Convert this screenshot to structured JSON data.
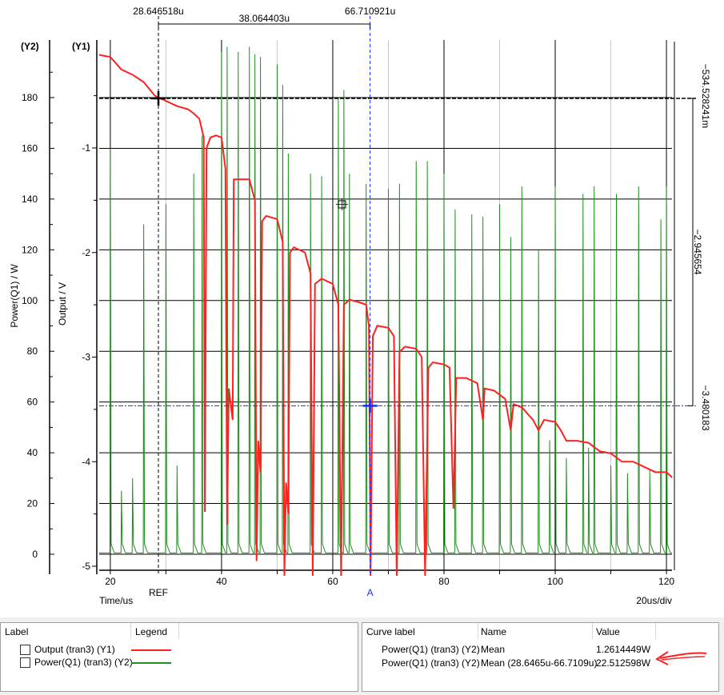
{
  "chart_data": {
    "type": "line",
    "xlabel": "Time/us",
    "x_scale_label": "20us/div",
    "xlim": [
      18,
      121
    ],
    "x_ticks": [
      20,
      40,
      60,
      80,
      100,
      120
    ],
    "y1": {
      "label": "Output / V",
      "tag": "(Y1)",
      "ylim": [
        -5.05,
        0.2
      ],
      "ticks": [
        -1,
        -2,
        -3,
        -4,
        -5
      ]
    },
    "y2": {
      "label": "Power(Q1) / W",
      "tag": "(Y2)",
      "ylim": [
        -5,
        200
      ],
      "ticks": [
        0,
        20,
        40,
        60,
        80,
        100,
        120,
        140,
        160,
        180
      ]
    },
    "grid": true,
    "colors": {
      "output": "#ff2020",
      "power": "#1f8f1f",
      "cursor_a": "#1030ff"
    },
    "cursors": {
      "ref": {
        "label": "REF",
        "x": 28.646518,
        "y2": 179.7
      },
      "a": {
        "label": "A",
        "x": 66.710921,
        "y2": 58.5
      },
      "ref_x_label": "28.646518u",
      "a_x_label": "66.710921u",
      "delta_label": "38.064403u",
      "right_top_label": "−534.528241m",
      "right_mid_label": "−2.945654",
      "right_bottom_label": "−3.480183"
    },
    "series": [
      {
        "name": "Output (tran3) (Y1)",
        "axis": "y1",
        "points": [
          [
            18,
            -0.11
          ],
          [
            20,
            -0.13
          ],
          [
            22,
            -0.25
          ],
          [
            24,
            -0.3
          ],
          [
            26,
            -0.37
          ],
          [
            28,
            -0.5
          ],
          [
            30,
            -0.55
          ],
          [
            32,
            -0.6
          ],
          [
            34,
            -0.63
          ],
          [
            35,
            -0.67
          ],
          [
            36,
            -0.72
          ],
          [
            36.8,
            -0.9
          ],
          [
            37,
            -4.48
          ],
          [
            37.3,
            -1.0
          ],
          [
            38,
            -0.9
          ],
          [
            39,
            -0.88
          ],
          [
            40,
            -0.9
          ],
          [
            40.7,
            -1.2
          ],
          [
            41,
            -4.6
          ],
          [
            41.3,
            -3.3
          ],
          [
            42,
            -3.6
          ],
          [
            42.2,
            -1.3
          ],
          [
            43,
            -1.3
          ],
          [
            45,
            -1.3
          ],
          [
            46,
            -1.5
          ],
          [
            46.3,
            -4.95
          ],
          [
            46.6,
            -3.8
          ],
          [
            47,
            -4.1
          ],
          [
            47.3,
            -1.7
          ],
          [
            48,
            -1.65
          ],
          [
            50,
            -1.68
          ],
          [
            51,
            -1.9
          ],
          [
            51.3,
            -5.4
          ],
          [
            51.6,
            -4.2
          ],
          [
            52,
            -4.5
          ],
          [
            52.3,
            -2.0
          ],
          [
            53,
            -1.95
          ],
          [
            55,
            -2.0
          ],
          [
            56,
            -2.2
          ],
          [
            56.4,
            -5.5
          ],
          [
            56.8,
            -2.3
          ],
          [
            58,
            -2.25
          ],
          [
            60,
            -2.3
          ],
          [
            61,
            -2.5
          ],
          [
            61.5,
            -5.5
          ],
          [
            62,
            -2.5
          ],
          [
            63,
            -2.45
          ],
          [
            65,
            -2.48
          ],
          [
            66,
            -2.5
          ],
          [
            66.5,
            -2.7
          ],
          [
            66.8,
            -5.5
          ],
          [
            67.2,
            -2.8
          ],
          [
            68,
            -2.7
          ],
          [
            70,
            -2.72
          ],
          [
            71,
            -2.8
          ],
          [
            71.5,
            -5.5
          ],
          [
            72,
            -2.95
          ],
          [
            73,
            -2.9
          ],
          [
            75,
            -2.92
          ],
          [
            76,
            -3.0
          ],
          [
            76.6,
            -5.5
          ],
          [
            77.2,
            -3.1
          ],
          [
            78,
            -3.05
          ],
          [
            80,
            -3.07
          ],
          [
            81,
            -3.1
          ],
          [
            81.7,
            -4.45
          ],
          [
            82.2,
            -3.2
          ],
          [
            84,
            -3.2
          ],
          [
            86,
            -3.25
          ],
          [
            87,
            -3.6
          ],
          [
            87.3,
            -3.3
          ],
          [
            89,
            -3.32
          ],
          [
            91,
            -3.4
          ],
          [
            92,
            -3.7
          ],
          [
            92.5,
            -3.45
          ],
          [
            94,
            -3.48
          ],
          [
            96,
            -3.6
          ],
          [
            97,
            -3.7
          ],
          [
            98,
            -3.6
          ],
          [
            100,
            -3.62
          ],
          [
            101,
            -3.7
          ],
          [
            102,
            -3.8
          ],
          [
            104,
            -3.8
          ],
          [
            106,
            -3.82
          ],
          [
            108,
            -3.9
          ],
          [
            110,
            -3.92
          ],
          [
            112,
            -4.0
          ],
          [
            114,
            -4.0
          ],
          [
            116,
            -4.05
          ],
          [
            118,
            -4.1
          ],
          [
            120,
            -4.1
          ],
          [
            121,
            -4.15
          ]
        ]
      },
      {
        "name": "Power(Q1) (tran3) (Y2)",
        "axis": "y2",
        "baseline": 0.5,
        "spikes": [
          [
            20,
            160
          ],
          [
            22,
            25
          ],
          [
            24,
            30
          ],
          [
            26,
            130
          ],
          [
            30,
            138
          ],
          [
            32,
            35
          ],
          [
            35,
            150
          ],
          [
            36.5,
            165
          ],
          [
            40,
            198
          ],
          [
            41,
            208
          ],
          [
            43,
            198
          ],
          [
            45,
            201
          ],
          [
            46,
            197
          ],
          [
            47,
            196
          ],
          [
            50,
            193
          ],
          [
            51,
            185
          ],
          [
            52,
            158
          ],
          [
            56,
            150
          ],
          [
            58,
            149
          ],
          [
            61,
            180
          ],
          [
            62,
            183
          ],
          [
            63,
            150
          ],
          [
            66,
            146
          ],
          [
            70,
            144
          ],
          [
            72,
            146
          ],
          [
            75,
            155
          ],
          [
            77,
            155
          ],
          [
            80,
            150
          ],
          [
            82,
            136
          ],
          [
            85,
            134
          ],
          [
            87,
            133
          ],
          [
            90,
            138
          ],
          [
            92,
            125
          ],
          [
            94,
            145
          ],
          [
            97,
            120
          ],
          [
            99,
            45
          ],
          [
            100,
            145
          ],
          [
            102,
            38
          ],
          [
            105,
            142
          ],
          [
            106,
            42
          ],
          [
            107,
            145
          ],
          [
            110,
            35
          ],
          [
            111,
            142
          ],
          [
            113,
            32
          ],
          [
            115,
            145
          ],
          [
            117,
            33
          ],
          [
            119,
            132
          ],
          [
            120,
            145
          ]
        ]
      }
    ]
  },
  "tables": {
    "legend": {
      "headers": [
        "Label",
        "Legend"
      ],
      "rows": [
        {
          "label": "Output (tran3) (Y1)"
        },
        {
          "label": "Power(Q1) (tran3) (Y2)"
        }
      ]
    },
    "stats": {
      "headers": [
        "Curve label",
        "Name",
        "Value"
      ],
      "rows": [
        {
          "curve": "Power(Q1) (tran3) (Y2)",
          "name": "Mean",
          "value": "1.2614449W"
        },
        {
          "curve": "Power(Q1) (tran3) (Y2)",
          "name": "Mean (28.6465u-66.7109u)",
          "value": "22.512598W"
        }
      ]
    }
  }
}
